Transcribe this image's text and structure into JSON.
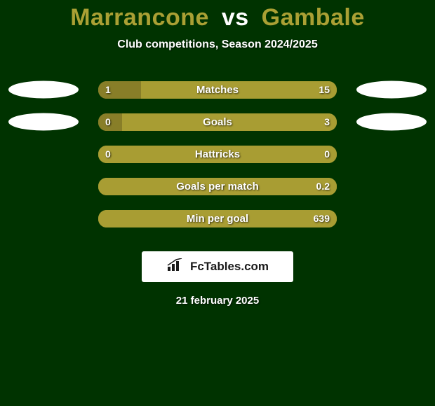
{
  "background_color": "#003300",
  "title": {
    "player1": "Marrancone",
    "vs": "vs",
    "player2": "Gambale",
    "player1_color": "#aaa034",
    "vs_color": "#ffffff",
    "player2_color": "#aaa034"
  },
  "subtitle": {
    "text": "Club competitions, Season 2024/2025",
    "color": "#ffffff"
  },
  "bar_track_bg": "#a89d33",
  "left_segment_color": "#a89d33",
  "right_segment_color": "#a89d33",
  "label_text_color": "#ffffff",
  "value_text_color": "#ffffff",
  "text_shadow_color": "rgba(0,0,0,0.7)",
  "ellipse_color": "#ffffff",
  "stats": [
    {
      "label": "Matches",
      "left_value": "1",
      "right_value": "15",
      "left_width_pct": 18,
      "right_width_pct": 82,
      "left_bg": "#887e28",
      "right_bg": "#a89d33",
      "show_left_ellipse": true,
      "show_right_ellipse": true
    },
    {
      "label": "Goals",
      "left_value": "0",
      "right_value": "3",
      "left_width_pct": 10,
      "right_width_pct": 90,
      "left_bg": "#887e28",
      "right_bg": "#a89d33",
      "show_left_ellipse": true,
      "show_right_ellipse": true
    },
    {
      "label": "Hattricks",
      "left_value": "0",
      "right_value": "0",
      "left_width_pct": 50,
      "right_width_pct": 50,
      "left_bg": "#a89d33",
      "right_bg": "#a89d33",
      "show_left_ellipse": false,
      "show_right_ellipse": false
    },
    {
      "label": "Goals per match",
      "left_value": "",
      "right_value": "0.2",
      "left_width_pct": 0,
      "right_width_pct": 100,
      "left_bg": "#a89d33",
      "right_bg": "#a89d33",
      "show_left_ellipse": false,
      "show_right_ellipse": false
    },
    {
      "label": "Min per goal",
      "left_value": "",
      "right_value": "639",
      "left_width_pct": 0,
      "right_width_pct": 100,
      "left_bg": "#a89d33",
      "right_bg": "#a89d33",
      "show_left_ellipse": false,
      "show_right_ellipse": false
    }
  ],
  "footer_badge": {
    "bg": "#ffffff",
    "text": "FcTables.com",
    "text_color": "#1a1a1a",
    "icon_color": "#1a1a1a"
  },
  "footer_date": {
    "text": "21 february 2025",
    "color": "#ffffff"
  }
}
